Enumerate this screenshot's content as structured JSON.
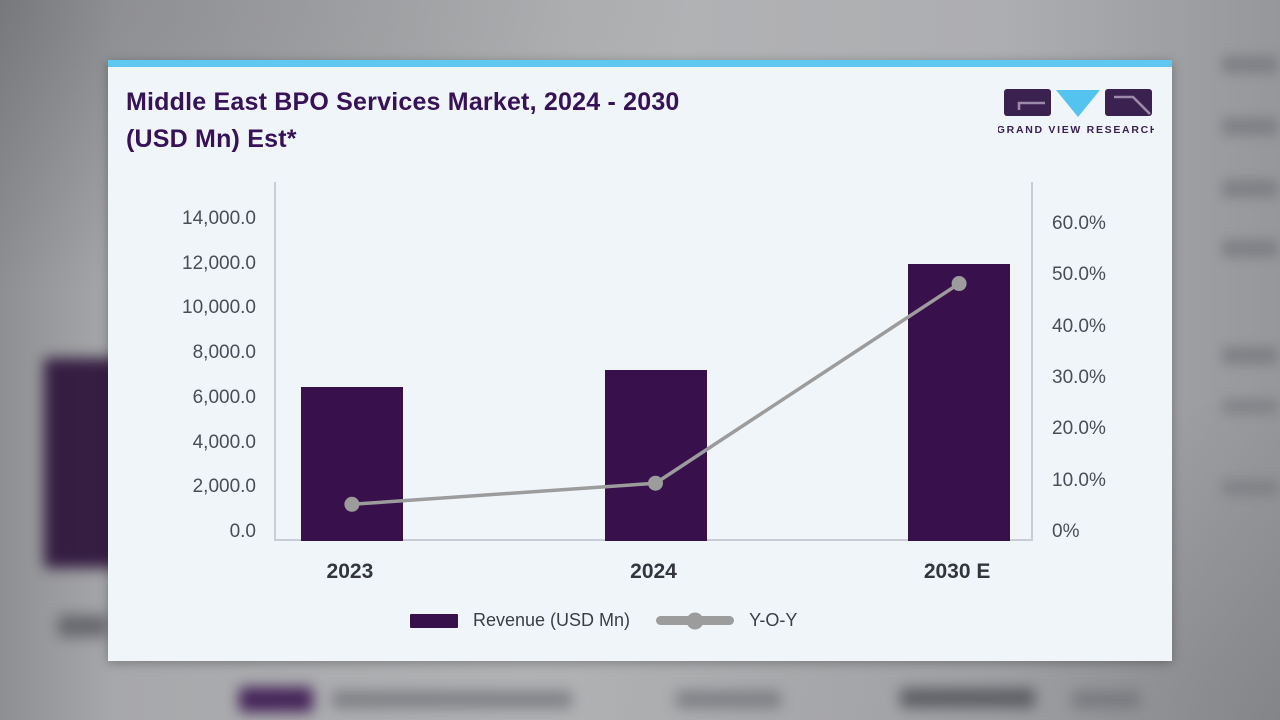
{
  "page": {
    "title_line1": "Middle East BPO Services Market, 2024 - 2030",
    "title_line2": "(USD Mn) Est*"
  },
  "logo": {
    "brand": "GRAND VIEW RESEARCH"
  },
  "chart_data": {
    "type": "bar",
    "subtype": "bar-with-line-combo",
    "title": "Middle East BPO Services Market, 2024 - 2030 (USD Mn) Est*",
    "categories": [
      "2023",
      "2024",
      "2030 E"
    ],
    "series": [
      {
        "name": "Revenue (USD Mn)",
        "type": "bar",
        "axis": "left",
        "values": [
          6500,
          7250,
          12000
        ]
      },
      {
        "name": "Y-O-Y",
        "type": "line",
        "axis": "right",
        "values": [
          5.4,
          9.5,
          48.4
        ]
      }
    ],
    "left_axis": {
      "min": 0,
      "max": 14000,
      "tick_values": [
        14000,
        12000,
        10000,
        8000,
        6000,
        4000,
        2000,
        0
      ],
      "ticks": [
        "14,000.0",
        "12,000.0",
        "10,000.0",
        "8,000.0",
        "6,000.0",
        "4,000.0",
        "2,000.0",
        "0.0"
      ]
    },
    "right_axis": {
      "min": 0,
      "max": 60,
      "tick_values": [
        60,
        50,
        40,
        30,
        20,
        10,
        0
      ],
      "ticks": [
        "60.0%",
        "50.0%",
        "40.0%",
        "30.0%",
        "20.0%",
        "10.0%",
        "0%"
      ]
    },
    "legend": [
      {
        "label": "Revenue (USD Mn)",
        "swatch": "bar"
      },
      {
        "label": "Y-O-Y",
        "swatch": "line"
      }
    ],
    "grid": false,
    "legend_position": "bottom",
    "colors": {
      "bar": "#38114c",
      "line": "#9c9c9c",
      "accent_strip": "#5fc8f1",
      "card_bg": "#f0f5f9",
      "logo_purple": "#3a2150",
      "logo_cyan": "#54c3ef"
    }
  }
}
